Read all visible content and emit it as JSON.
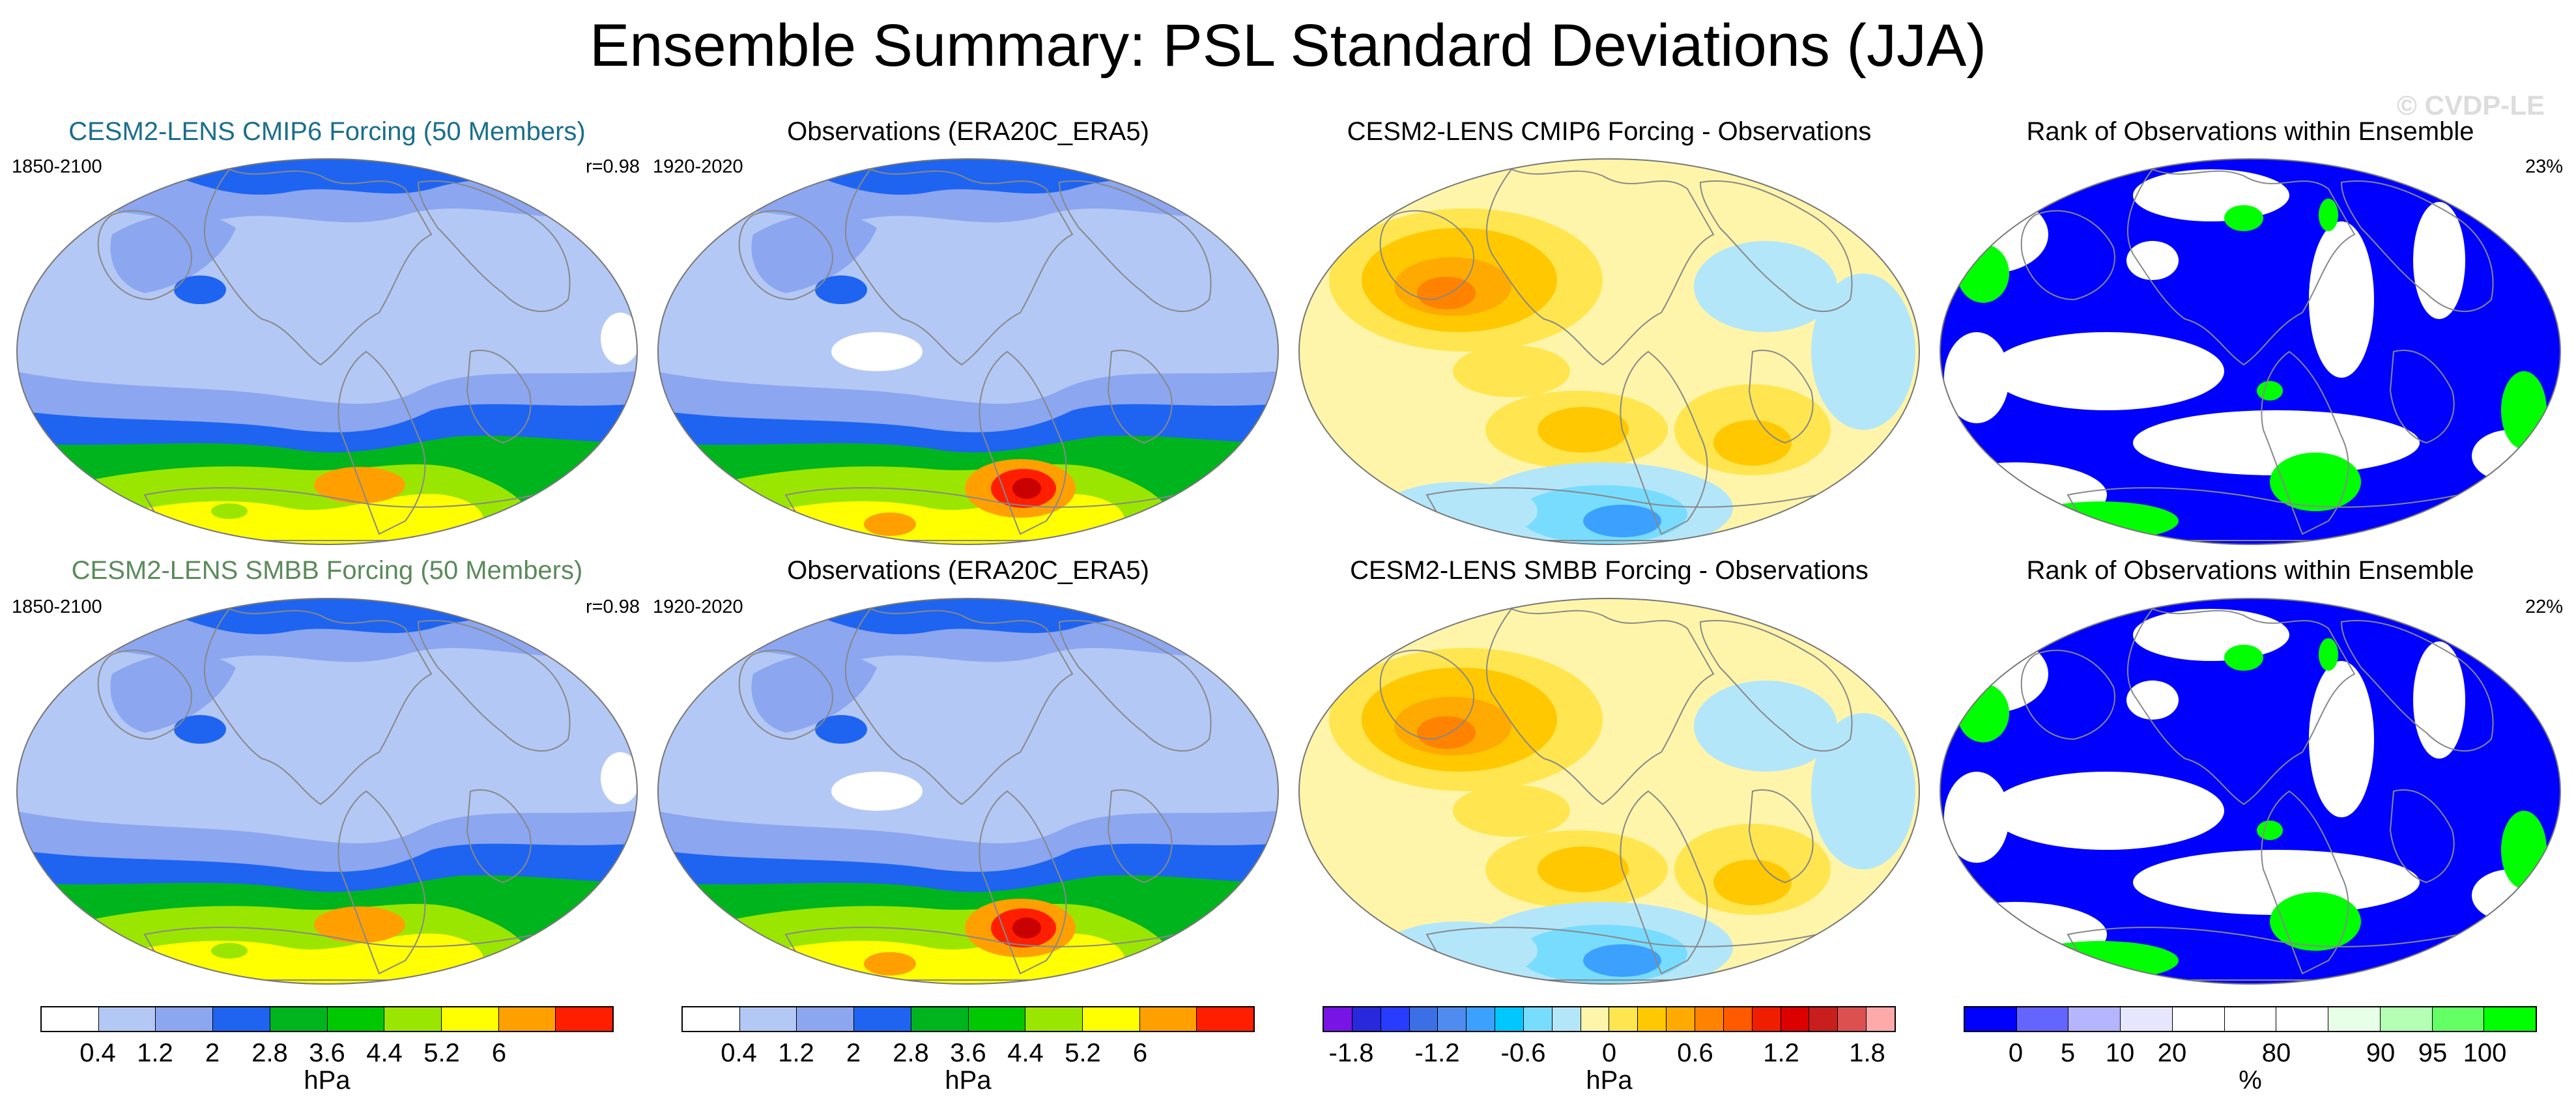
{
  "title": "Ensemble Summary: PSL Standard Deviations (JJA)",
  "watermark": "© CVDP-LE",
  "colors": {
    "title_row1_col1": "#1a6e8c",
    "title_row2_col1": "#5b8a5b",
    "land_outline": "#888888"
  },
  "panels": [
    {
      "title": "CESM2-LENS CMIP6 Forcing (50 Members)",
      "left_label": "1850-2100",
      "right_label": "r=0.98",
      "type": "std",
      "variant": "model"
    },
    {
      "title": "Observations (ERA20C_ERA5)",
      "left_label": "1920-2020",
      "right_label": "",
      "type": "std",
      "variant": "obs"
    },
    {
      "title": "CESM2-LENS CMIP6 Forcing - Observations",
      "left_label": "",
      "right_label": "",
      "type": "diff",
      "variant": "a"
    },
    {
      "title": "Rank of Observations within Ensemble",
      "left_label": "",
      "right_label": "23%",
      "type": "rank",
      "variant": "a"
    },
    {
      "title": "CESM2-LENS SMBB Forcing (50 Members)",
      "left_label": "1850-2100",
      "right_label": "r=0.98",
      "type": "std",
      "variant": "model"
    },
    {
      "title": "Observations (ERA20C_ERA5)",
      "left_label": "1920-2020",
      "right_label": "",
      "type": "std",
      "variant": "obs"
    },
    {
      "title": "CESM2-LENS SMBB Forcing - Observations",
      "left_label": "",
      "right_label": "",
      "type": "diff",
      "variant": "b"
    },
    {
      "title": "Rank of Observations within Ensemble",
      "left_label": "",
      "right_label": "22%",
      "type": "rank",
      "variant": "b"
    }
  ],
  "colorbars": [
    {
      "unit": "hPa",
      "colors": [
        "#ffffff",
        "#b4c8f5",
        "#8ca6f0",
        "#1e64f0",
        "#00b41e",
        "#00c800",
        "#9be600",
        "#ffff00",
        "#ffa000",
        "#ff1e00"
      ],
      "ticks": [
        "0.4",
        "1.2",
        "2",
        "2.8",
        "3.6",
        "4.4",
        "5.2",
        "6"
      ]
    },
    {
      "unit": "hPa",
      "colors": [
        "#ffffff",
        "#b4c8f5",
        "#8ca6f0",
        "#1e64f0",
        "#00b41e",
        "#00c800",
        "#9be600",
        "#ffff00",
        "#ffa000",
        "#ff1e00"
      ],
      "ticks": [
        "0.4",
        "1.2",
        "2",
        "2.8",
        "3.6",
        "4.4",
        "5.2",
        "6"
      ]
    },
    {
      "unit": "hPa",
      "colors": [
        "#7814e6",
        "#2828dc",
        "#283cff",
        "#3c6ee6",
        "#508cf0",
        "#3ca0ff",
        "#00c8ff",
        "#78dcff",
        "#b4e6fa",
        "#fff5aa",
        "#ffe650",
        "#ffc800",
        "#ffaa00",
        "#ff8200",
        "#ff5a00",
        "#f01e00",
        "#dc0000",
        "#c81e1e",
        "#dc5050",
        "#ffaaaa"
      ],
      "ticks": [
        "-1.8",
        "-1.2",
        "-0.6",
        "0",
        "0.6",
        "1.2",
        "1.8"
      ]
    },
    {
      "unit": "%",
      "colors": [
        "#0000ff",
        "#6464ff",
        "#b4b4ff",
        "#e6e6ff",
        "#ffffff",
        "#ffffff",
        "#ffffff",
        "#e6ffe6",
        "#b4ffb4",
        "#64ff64",
        "#00ff00"
      ],
      "ticks": [
        "0",
        "5",
        "10",
        "20",
        "80",
        "90",
        "95",
        "100"
      ]
    }
  ]
}
